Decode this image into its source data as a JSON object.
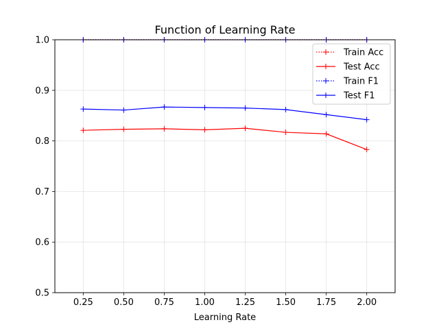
{
  "chart_data": {
    "type": "line",
    "title": "Function of Learning Rate",
    "xlabel": "Learning Rate",
    "ylabel": "",
    "x": [
      0.25,
      0.5,
      0.75,
      1.0,
      1.25,
      1.5,
      1.75,
      2.0
    ],
    "x_tick_labels": [
      "0.25",
      "0.50",
      "0.75",
      "1.00",
      "1.25",
      "1.50",
      "1.75",
      "2.00"
    ],
    "y_ticks": [
      0.5,
      0.6,
      0.7,
      0.8,
      0.9,
      1.0
    ],
    "y_tick_labels": [
      "0.5",
      "0.6",
      "0.7",
      "0.8",
      "0.9",
      "1.0"
    ],
    "xlim": [
      0.075,
      2.175
    ],
    "ylim": [
      0.5,
      1.0
    ],
    "grid": true,
    "legend_position": "top-right",
    "series": [
      {
        "name": "Train Acc",
        "color": "#ff0000",
        "style": "dotted",
        "marker": "+",
        "values": [
          1.0,
          1.0,
          1.0,
          1.0,
          1.0,
          1.0,
          1.0,
          1.0
        ]
      },
      {
        "name": "Test Acc",
        "color": "#ff0000",
        "style": "solid",
        "marker": "+",
        "values": [
          0.821,
          0.823,
          0.824,
          0.822,
          0.825,
          0.817,
          0.814,
          0.783
        ]
      },
      {
        "name": "Train F1",
        "color": "#0000ff",
        "style": "dotted",
        "marker": "+",
        "values": [
          1.0,
          1.0,
          1.0,
          1.0,
          1.0,
          1.0,
          1.0,
          1.0
        ]
      },
      {
        "name": "Test F1",
        "color": "#0000ff",
        "style": "solid",
        "marker": "+",
        "values": [
          0.863,
          0.861,
          0.867,
          0.866,
          0.865,
          0.862,
          0.852,
          0.842
        ]
      }
    ]
  }
}
